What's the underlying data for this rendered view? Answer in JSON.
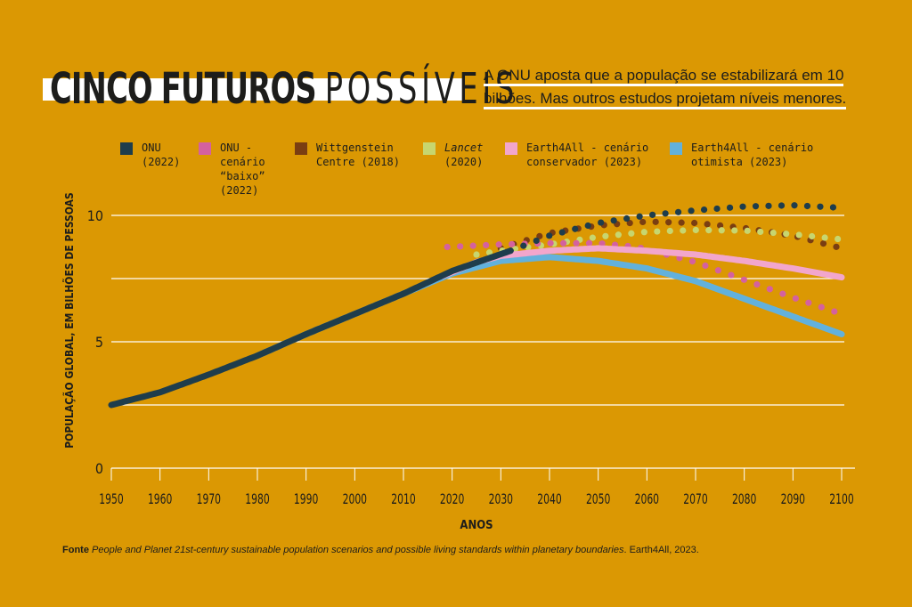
{
  "title": {
    "part1": "CINCO",
    "part2": "FUTUROS",
    "part3": "POSSÍVEIS"
  },
  "subtitle": {
    "line1": "A ONU aposta que a população se estabilizará em 10",
    "line2": "bilhões. Mas outros estudos projetam níveis menores."
  },
  "source": {
    "label": "Fonte",
    "title": "People and Planet 21st-century sustainable population scenarios and possible living standards within planetary boundaries",
    "rest": ". Earth4All, 2023."
  },
  "chart_data": {
    "type": "line",
    "xlabel": "ANOS",
    "ylabel": "POPULAÇÃO GLOBAL, EM BILHÕES DE PESSOAS",
    "xlim": [
      1950,
      2100
    ],
    "ylim": [
      0,
      10.5
    ],
    "xticks": [
      1950,
      1960,
      1970,
      1980,
      1990,
      2000,
      2010,
      2020,
      2030,
      2040,
      2050,
      2060,
      2070,
      2080,
      2090,
      2100
    ],
    "yticks": [
      0,
      5,
      10
    ],
    "grid_y": [
      2.5,
      5,
      7.5,
      10
    ],
    "legend_placement": "top",
    "series": [
      {
        "name": "ONU",
        "name2": "(2022)",
        "color": "#1E3D4C",
        "style": "solid+dotted",
        "solid": [
          [
            1950,
            2.5
          ],
          [
            1960,
            3.0
          ],
          [
            1970,
            3.7
          ],
          [
            1980,
            4.45
          ],
          [
            1990,
            5.3
          ],
          [
            2000,
            6.1
          ],
          [
            2010,
            6.9
          ],
          [
            2020,
            7.8
          ],
          [
            2032,
            8.6
          ]
        ],
        "dotted": [
          [
            2032,
            8.6
          ],
          [
            2040,
            9.2
          ],
          [
            2050,
            9.7
          ],
          [
            2060,
            10.0
          ],
          [
            2070,
            10.2
          ],
          [
            2080,
            10.35
          ],
          [
            2090,
            10.4
          ],
          [
            2100,
            10.3
          ]
        ]
      },
      {
        "name": "ONU -",
        "name2": "cenário",
        "name3": "“baixo”",
        "name4": "(2022)",
        "color": "#D4619F",
        "style": "dotted",
        "dotted": [
          [
            2019,
            8.75
          ],
          [
            2030,
            8.85
          ],
          [
            2040,
            8.9
          ],
          [
            2050,
            8.9
          ],
          [
            2058,
            8.75
          ],
          [
            2065,
            8.4
          ],
          [
            2070,
            8.15
          ],
          [
            2080,
            7.45
          ],
          [
            2090,
            6.75
          ],
          [
            2100,
            6.1
          ]
        ]
      },
      {
        "name": "Wittgenstein",
        "name2": "Centre (2018)",
        "color": "#7A3E12",
        "style": "dotted",
        "dotted": [
          [
            2030,
            8.7
          ],
          [
            2040,
            9.3
          ],
          [
            2050,
            9.6
          ],
          [
            2060,
            9.75
          ],
          [
            2070,
            9.7
          ],
          [
            2080,
            9.5
          ],
          [
            2090,
            9.2
          ],
          [
            2100,
            8.7
          ]
        ]
      },
      {
        "name": "Lancet",
        "name2": "(2020)",
        "italic": true,
        "color": "#C7D66F",
        "style": "dotted",
        "dotted": [
          [
            2025,
            8.45
          ],
          [
            2030,
            8.6
          ],
          [
            2040,
            8.85
          ],
          [
            2050,
            9.15
          ],
          [
            2060,
            9.35
          ],
          [
            2070,
            9.42
          ],
          [
            2080,
            9.4
          ],
          [
            2090,
            9.25
          ],
          [
            2100,
            9.05
          ]
        ]
      },
      {
        "name": "Earth4All - cenário",
        "name2": "conservador (2023)",
        "color": "#F2A6CC",
        "style": "solid",
        "solid": [
          [
            2018,
            7.6
          ],
          [
            2025,
            8.15
          ],
          [
            2030,
            8.4
          ],
          [
            2040,
            8.6
          ],
          [
            2050,
            8.7
          ],
          [
            2060,
            8.6
          ],
          [
            2070,
            8.45
          ],
          [
            2080,
            8.2
          ],
          [
            2090,
            7.9
          ],
          [
            2100,
            7.55
          ]
        ]
      },
      {
        "name": "Earth4All - cenário",
        "name2": "otimista (2023)",
        "color": "#62B1DC",
        "style": "solid",
        "solid": [
          [
            1980,
            4.45
          ],
          [
            1990,
            5.3
          ],
          [
            2000,
            6.1
          ],
          [
            2010,
            6.9
          ],
          [
            2020,
            7.7
          ],
          [
            2030,
            8.2
          ],
          [
            2040,
            8.35
          ],
          [
            2050,
            8.2
          ],
          [
            2060,
            7.9
          ],
          [
            2070,
            7.4
          ],
          [
            2080,
            6.7
          ],
          [
            2090,
            6.0
          ],
          [
            2100,
            5.3
          ]
        ]
      }
    ]
  }
}
